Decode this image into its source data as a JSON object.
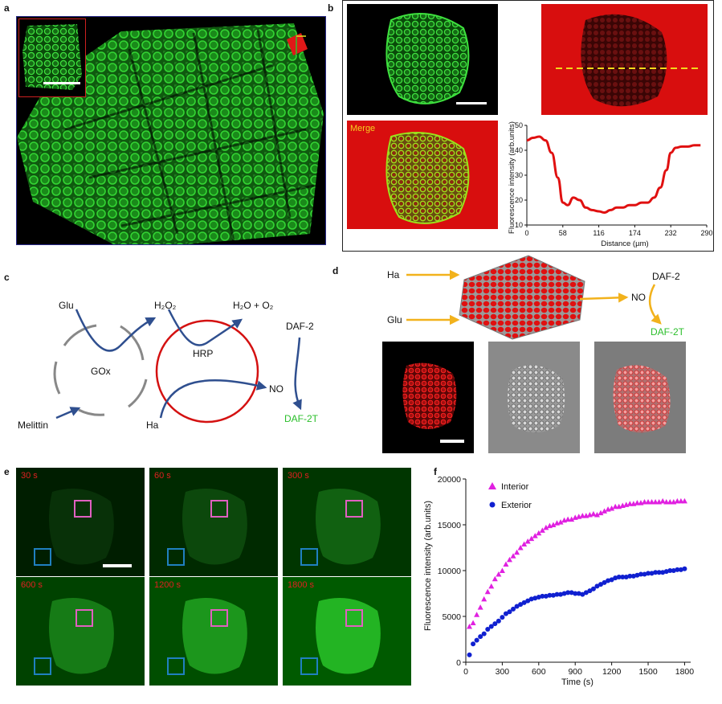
{
  "panels": {
    "a": {
      "label": "a"
    },
    "b": {
      "label": "b",
      "merge_label": "Merge",
      "plot": {
        "ylabel": "Fluorescence intensity (arb.units)",
        "xlabel": "Distance (µm)",
        "xticks": [
          "0",
          "58",
          "116",
          "174",
          "232",
          "290"
        ],
        "yticks": [
          "10",
          "20",
          "30",
          "40",
          "50"
        ],
        "line_color": "#e01010"
      }
    },
    "c": {
      "label": "c",
      "glu": "Glu",
      "h2o2": "H₂O₂",
      "h2o_o2": "H₂O + O₂",
      "gox": "GOx",
      "hrp": "HRP",
      "daf2": "DAF-2",
      "no": "NO",
      "melittin": "Melittin",
      "ha": "Ha",
      "daf2t": "DAF-2T"
    },
    "d": {
      "label": "d",
      "ha": "Ha",
      "glu": "Glu",
      "no": "NO",
      "daf2": "DAF-2",
      "daf2t": "DAF-2T"
    },
    "e": {
      "label": "e",
      "times": [
        "30 s",
        "60 s",
        "300 s",
        "600 s",
        "1200 s",
        "1800 s"
      ]
    },
    "f": {
      "label": "f",
      "legend_interior": "Interior",
      "legend_exterior": "Exterior",
      "xlabel": "Time (s)",
      "ylabel": "Fluorescence intensity (arb.units)",
      "xticks": [
        "0",
        "300",
        "600",
        "900",
        "1200",
        "1500",
        "1800"
      ],
      "yticks": [
        "0",
        "5000",
        "10000",
        "15000",
        "20000"
      ]
    }
  },
  "colors": {
    "green": "#2fbf2f",
    "red": "#d41111",
    "arrow_blue": "#2f4f8f",
    "arrow_yellow": "#f2b21c",
    "interior": "#e020e0",
    "exterior": "#1020d0",
    "roi_pink": "#e060c0",
    "roi_blue": "#2080c0"
  },
  "chart_data": [
    {
      "type": "line",
      "panel": "b",
      "xlabel": "Distance (µm)",
      "ylabel": "Fluorescence intensity (arb.units)",
      "xlim": [
        0,
        290
      ],
      "ylim": [
        10,
        50
      ],
      "x": [
        0,
        10,
        20,
        30,
        40,
        50,
        58,
        66,
        75,
        85,
        95,
        105,
        116,
        125,
        135,
        145,
        155,
        165,
        174,
        185,
        195,
        205,
        215,
        225,
        232,
        240,
        250,
        260,
        270,
        280
      ],
      "series": [
        {
          "values": [
            44,
            45,
            45.5,
            44,
            39,
            29,
            19,
            18,
            21,
            20,
            17,
            16,
            15.5,
            15,
            16,
            17,
            17,
            18,
            18,
            19,
            19,
            21,
            25,
            32,
            39,
            41,
            41.5,
            41.5,
            42,
            42
          ]
        }
      ]
    },
    {
      "type": "scatter",
      "panel": "f",
      "xlabel": "Time (s)",
      "ylabel": "Fluorescence intensity (arb.units)",
      "xlim": [
        0,
        1850
      ],
      "ylim": [
        0,
        20000
      ],
      "x": [
        30,
        60,
        90,
        120,
        150,
        180,
        210,
        240,
        270,
        300,
        330,
        360,
        390,
        420,
        450,
        480,
        510,
        540,
        570,
        600,
        630,
        660,
        690,
        720,
        750,
        780,
        810,
        840,
        870,
        900,
        930,
        960,
        990,
        1020,
        1050,
        1080,
        1110,
        1140,
        1170,
        1200,
        1230,
        1260,
        1290,
        1320,
        1350,
        1380,
        1410,
        1440,
        1470,
        1500,
        1530,
        1560,
        1590,
        1620,
        1650,
        1680,
        1710,
        1740,
        1770,
        1800
      ],
      "series": [
        {
          "name": "Interior",
          "values": [
            3900,
            4300,
            5200,
            6000,
            6900,
            7700,
            8300,
            9100,
            9600,
            10000,
            10700,
            11200,
            11600,
            12000,
            12500,
            12900,
            13200,
            13500,
            13800,
            14100,
            14400,
            14700,
            14900,
            15000,
            15200,
            15300,
            15500,
            15600,
            15600,
            15800,
            15900,
            16000,
            16000,
            16100,
            16200,
            16100,
            16300,
            16500,
            16700,
            16800,
            17000,
            17000,
            17100,
            17200,
            17300,
            17300,
            17400,
            17400,
            17500,
            17500,
            17500,
            17500,
            17500,
            17600,
            17500,
            17500,
            17500,
            17600,
            17600,
            17600
          ]
        },
        {
          "name": "Exterior",
          "values": [
            800,
            2000,
            2400,
            2800,
            3100,
            3600,
            3900,
            4200,
            4500,
            4900,
            5300,
            5500,
            5800,
            6100,
            6300,
            6500,
            6700,
            6900,
            7000,
            7100,
            7200,
            7200,
            7300,
            7300,
            7400,
            7400,
            7500,
            7600,
            7600,
            7500,
            7500,
            7400,
            7600,
            7800,
            8000,
            8300,
            8500,
            8700,
            8900,
            9000,
            9200,
            9300,
            9300,
            9300,
            9400,
            9400,
            9500,
            9600,
            9600,
            9700,
            9700,
            9800,
            9800,
            9800,
            9900,
            10000,
            10000,
            10100,
            10100,
            10200
          ]
        }
      ]
    }
  ]
}
